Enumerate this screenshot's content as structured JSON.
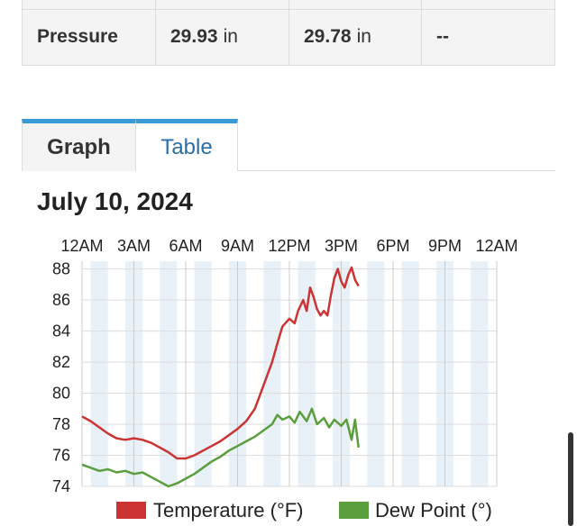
{
  "summary": {
    "label": "Pressure",
    "high_value": "29.93",
    "high_unit": "in",
    "low_value": "29.78",
    "low_unit": "in",
    "avg": "--"
  },
  "tabs": {
    "graph": "Graph",
    "table": "Table"
  },
  "chart_data": {
    "type": "line",
    "title": "July 10, 2024",
    "x_ticks": [
      "12AM",
      "3AM",
      "6AM",
      "9AM",
      "12PM",
      "3PM",
      "6PM",
      "9PM",
      "12AM"
    ],
    "x_range_hours": [
      0,
      24
    ],
    "y_ticks": [
      "88",
      "86",
      "84",
      "82",
      "80",
      "78",
      "76",
      "74"
    ],
    "ylim": [
      74,
      88.5
    ],
    "grid": true,
    "legend_position": "bottom",
    "series": [
      {
        "name": "Temperature (°F)",
        "color": "#cc3333",
        "points": [
          [
            0,
            78.5
          ],
          [
            0.5,
            78.2
          ],
          [
            1,
            77.8
          ],
          [
            1.5,
            77.4
          ],
          [
            2,
            77.1
          ],
          [
            2.5,
            77.0
          ],
          [
            3,
            77.1
          ],
          [
            3.5,
            77.0
          ],
          [
            4,
            76.8
          ],
          [
            4.5,
            76.5
          ],
          [
            5,
            76.2
          ],
          [
            5.5,
            75.8
          ],
          [
            6,
            75.8
          ],
          [
            6.5,
            76.0
          ],
          [
            7,
            76.3
          ],
          [
            7.5,
            76.6
          ],
          [
            8,
            76.9
          ],
          [
            8.5,
            77.3
          ],
          [
            9,
            77.7
          ],
          [
            9.5,
            78.2
          ],
          [
            10,
            79.0
          ],
          [
            10.5,
            80.5
          ],
          [
            11,
            82.0
          ],
          [
            11.3,
            83.2
          ],
          [
            11.6,
            84.3
          ],
          [
            12,
            84.8
          ],
          [
            12.3,
            84.5
          ],
          [
            12.5,
            85.3
          ],
          [
            12.8,
            86.0
          ],
          [
            13,
            85.3
          ],
          [
            13.2,
            86.8
          ],
          [
            13.4,
            86.2
          ],
          [
            13.6,
            85.4
          ],
          [
            13.8,
            85.0
          ],
          [
            14,
            85.3
          ],
          [
            14.2,
            85.0
          ],
          [
            14.4,
            86.3
          ],
          [
            14.6,
            87.4
          ],
          [
            14.8,
            88.0
          ],
          [
            15,
            87.2
          ],
          [
            15.2,
            86.8
          ],
          [
            15.4,
            87.6
          ],
          [
            15.6,
            88.1
          ],
          [
            15.8,
            87.3
          ],
          [
            16,
            86.9
          ]
        ]
      },
      {
        "name": "Dew Point (°)",
        "color": "#5a9e3e",
        "points": [
          [
            0,
            75.4
          ],
          [
            0.5,
            75.2
          ],
          [
            1,
            75.0
          ],
          [
            1.5,
            75.1
          ],
          [
            2,
            74.9
          ],
          [
            2.5,
            75.0
          ],
          [
            3,
            74.8
          ],
          [
            3.5,
            74.9
          ],
          [
            4,
            74.6
          ],
          [
            4.5,
            74.3
          ],
          [
            5,
            74.0
          ],
          [
            5.5,
            74.2
          ],
          [
            6,
            74.5
          ],
          [
            6.5,
            74.8
          ],
          [
            7,
            75.2
          ],
          [
            7.5,
            75.6
          ],
          [
            8,
            75.9
          ],
          [
            8.5,
            76.3
          ],
          [
            9,
            76.6
          ],
          [
            9.5,
            76.9
          ],
          [
            10,
            77.2
          ],
          [
            10.5,
            77.6
          ],
          [
            11,
            78.0
          ],
          [
            11.3,
            78.6
          ],
          [
            11.6,
            78.3
          ],
          [
            12,
            78.5
          ],
          [
            12.3,
            78.1
          ],
          [
            12.6,
            78.8
          ],
          [
            13,
            78.2
          ],
          [
            13.3,
            79.0
          ],
          [
            13.6,
            78.0
          ],
          [
            14,
            78.4
          ],
          [
            14.3,
            77.8
          ],
          [
            14.6,
            78.3
          ],
          [
            15,
            77.9
          ],
          [
            15.3,
            78.3
          ],
          [
            15.6,
            77.0
          ],
          [
            15.8,
            78.3
          ],
          [
            16,
            76.5
          ]
        ]
      }
    ]
  }
}
